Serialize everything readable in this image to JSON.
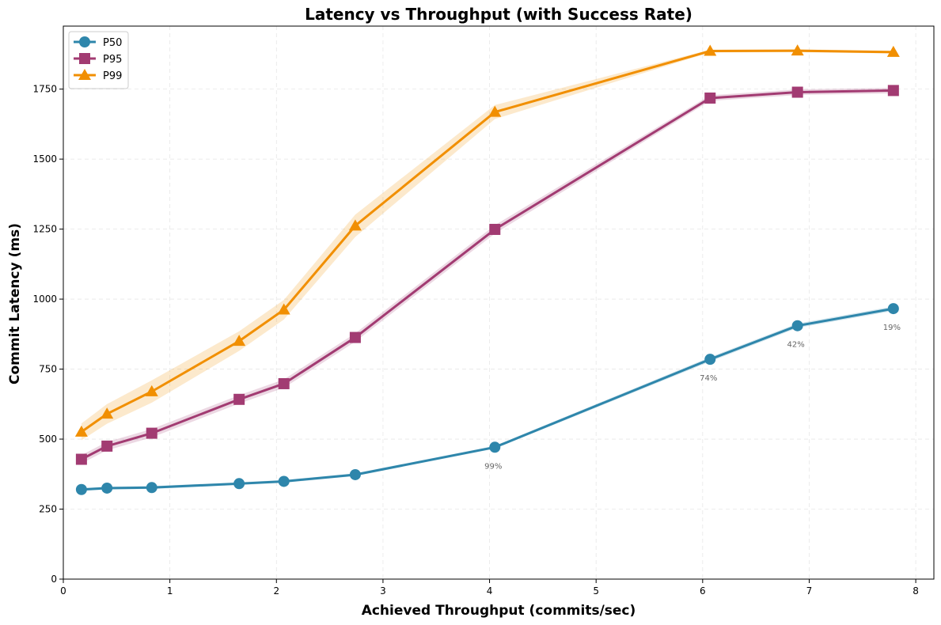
{
  "chart_data": {
    "type": "line",
    "title": "Latency vs Throughput (with Success Rate)",
    "xlabel": "Achieved Throughput (commits/sec)",
    "ylabel": "Commit Latency (ms)",
    "xlim": [
      0,
      8.17
    ],
    "ylim": [
      0,
      1975
    ],
    "xticks": [
      0,
      1,
      2,
      3,
      4,
      5,
      6,
      7,
      8
    ],
    "yticks": [
      0,
      250,
      500,
      750,
      1000,
      1250,
      1500,
      1750
    ],
    "grid": true,
    "legend_position": "top-left",
    "x": [
      0.17,
      0.41,
      0.83,
      1.65,
      2.07,
      2.74,
      4.05,
      6.07,
      6.89,
      7.79
    ],
    "series": [
      {
        "name": "P50",
        "color": "#2E86AB",
        "marker": "circle",
        "values": [
          320,
          325,
          327,
          341,
          349,
          373,
          471,
          785,
          905,
          966
        ],
        "band": [
          5,
          5,
          5,
          5,
          5,
          5,
          5,
          8,
          8,
          8
        ]
      },
      {
        "name": "P95",
        "color": "#A23B72",
        "marker": "square",
        "values": [
          428,
          475,
          521,
          642,
          698,
          863,
          1249,
          1718,
          1739,
          1745
        ],
        "band": [
          15,
          15,
          15,
          15,
          15,
          15,
          15,
          10,
          10,
          10
        ]
      },
      {
        "name": "P99",
        "color": "#F18F01",
        "marker": "triangle",
        "values": [
          526,
          590,
          670,
          850,
          962,
          1262,
          1668,
          1886,
          1887,
          1882
        ],
        "band": [
          30,
          35,
          40,
          35,
          35,
          40,
          25,
          5,
          5,
          5
        ]
      }
    ],
    "annotations": [
      {
        "x": 4.05,
        "y": 471,
        "text": "99%"
      },
      {
        "x": 6.07,
        "y": 785,
        "text": "74%"
      },
      {
        "x": 6.89,
        "y": 905,
        "text": "42%"
      },
      {
        "x": 7.79,
        "y": 966,
        "text": "19%"
      }
    ]
  }
}
